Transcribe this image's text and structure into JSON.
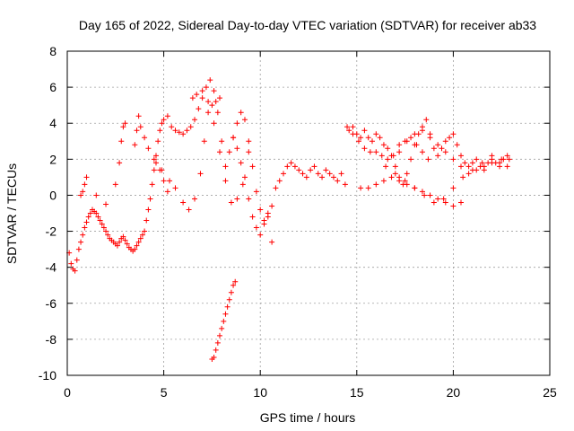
{
  "chart_data": {
    "type": "scatter",
    "title": "Day 165 of 2022, Sidereal Day-to-day VTEC variation (SDTVAR) for receiver ab33",
    "xlabel": "GPS time / hours",
    "ylabel": "SDTVAR / TECUs",
    "xlim": [
      0,
      25
    ],
    "ylim": [
      -10,
      8
    ],
    "xticks": [
      0,
      5,
      10,
      15,
      20,
      25
    ],
    "yticks": [
      -10,
      -8,
      -6,
      -4,
      -2,
      0,
      2,
      4,
      6,
      8
    ],
    "grid": true,
    "marker": "+",
    "color": "#ff0000",
    "series": [
      {
        "name": "SDTVAR",
        "x": [
          0.1,
          0.2,
          0.3,
          0.4,
          0.5,
          0.6,
          0.7,
          0.8,
          0.9,
          1.0,
          1.1,
          1.2,
          1.3,
          1.4,
          1.5,
          1.6,
          1.7,
          1.8,
          1.9,
          2.0,
          2.1,
          2.2,
          2.3,
          2.4,
          2.5,
          2.6,
          2.7,
          2.8,
          2.9,
          3.0,
          3.1,
          3.2,
          3.3,
          3.4,
          3.5,
          3.6,
          3.7,
          3.8,
          3.9,
          4.0,
          4.1,
          4.2,
          4.3,
          4.4,
          4.5,
          4.6,
          4.7,
          4.8,
          4.9,
          5.0,
          5.2,
          5.4,
          5.6,
          5.8,
          6.0,
          6.2,
          6.4,
          6.6,
          6.8,
          7.0,
          7.2,
          7.4,
          7.6,
          7.8,
          8.0,
          8.2,
          8.4,
          8.6,
          8.8,
          9.0,
          9.2,
          9.4,
          9.6,
          9.8,
          10.0,
          10.2,
          10.4,
          10.6,
          10.8,
          11.0,
          11.2,
          11.4,
          11.6,
          11.8,
          12.0,
          12.2,
          12.4,
          12.6,
          12.8,
          13.0,
          13.2,
          13.4,
          13.6,
          13.8,
          14.0,
          14.2,
          14.4,
          14.6,
          14.8,
          15.0,
          15.2,
          15.4,
          15.6,
          15.8,
          16.0,
          16.2,
          16.4,
          16.6,
          16.8,
          17.0,
          17.2,
          17.4,
          17.6,
          17.8,
          18.0,
          18.2,
          18.4,
          18.6,
          18.8,
          19.0,
          19.2,
          19.4,
          19.6,
          19.8,
          20.0,
          20.2,
          20.4,
          20.6,
          20.8,
          21.0,
          21.2,
          21.4,
          21.6,
          21.8,
          22.0,
          22.2,
          22.4,
          22.6,
          22.8,
          0.7,
          0.8,
          0.9,
          1.0,
          1.5,
          2.0,
          2.5,
          2.7,
          2.8,
          2.9,
          3.0,
          3.5,
          3.6,
          3.7,
          3.8,
          4.0,
          4.2,
          4.5,
          4.8,
          5.0,
          5.2,
          4.6,
          4.9,
          5.3,
          5.6,
          6.0,
          6.3,
          6.6,
          6.9,
          7.1,
          7.3,
          7.5,
          7.7,
          7.9,
          6.5,
          6.7,
          7.0,
          7.3,
          7.6,
          7.9,
          8.2,
          8.5,
          8.8,
          9.1,
          9.4,
          8.6,
          8.8,
          9.0,
          9.2,
          9.4,
          9.6,
          9.8,
          10.0,
          10.2,
          10.4,
          10.6,
          7.5,
          7.6,
          7.7,
          7.8,
          7.9,
          8.0,
          8.1,
          8.2,
          8.3,
          8.4,
          8.5,
          8.6,
          8.7,
          14.5,
          14.8,
          15.1,
          15.4,
          15.7,
          16.0,
          16.3,
          16.6,
          16.9,
          17.2,
          17.5,
          17.8,
          18.1,
          18.4,
          18.7,
          15.2,
          15.6,
          16.0,
          16.4,
          16.8,
          17.2,
          17.6,
          18.0,
          18.4,
          18.8,
          19.2,
          19.6,
          20.0,
          20.4,
          16.5,
          17.0,
          17.5,
          18.0,
          18.5,
          19.0,
          19.5,
          20.0,
          20.5,
          21.0,
          21.5,
          22.0,
          22.5,
          22.9,
          17.2,
          17.6,
          18.0,
          18.4,
          18.8,
          19.2,
          19.6,
          20.0,
          20.4,
          20.8,
          21.2,
          21.6,
          22.0,
          22.4,
          22.8
        ],
        "y": [
          -3.2,
          -3.8,
          -4.1,
          -4.2,
          -3.6,
          -3.0,
          -2.6,
          -2.2,
          -1.8,
          -1.5,
          -1.2,
          -1.0,
          -0.8,
          -0.9,
          -1.0,
          -1.2,
          -1.4,
          -1.6,
          -1.8,
          -2.0,
          -2.2,
          -2.4,
          -2.5,
          -2.6,
          -2.7,
          -2.8,
          -2.6,
          -2.4,
          -2.3,
          -2.5,
          -2.7,
          -2.9,
          -3.0,
          -3.1,
          -3.0,
          -2.8,
          -2.6,
          -2.4,
          -2.2,
          -2.0,
          -1.4,
          -0.8,
          -0.2,
          0.6,
          1.4,
          2.2,
          3.0,
          3.6,
          4.0,
          4.2,
          4.4,
          3.8,
          3.6,
          3.5,
          3.4,
          3.6,
          3.8,
          4.2,
          4.8,
          5.4,
          6.0,
          6.4,
          5.8,
          4.6,
          3.0,
          1.6,
          2.4,
          3.2,
          4.0,
          4.6,
          4.2,
          3.0,
          1.6,
          0.2,
          -0.8,
          -1.4,
          -1.2,
          -0.6,
          0.4,
          0.8,
          1.2,
          1.6,
          1.8,
          1.6,
          1.4,
          1.2,
          1.0,
          1.4,
          1.6,
          1.2,
          1.0,
          1.4,
          1.2,
          1.0,
          0.8,
          1.2,
          0.6,
          3.6,
          3.8,
          3.4,
          3.2,
          3.6,
          3.2,
          3.0,
          3.4,
          3.2,
          2.8,
          2.6,
          2.2,
          1.6,
          1.0,
          0.6,
          1.2,
          2.0,
          2.8,
          3.4,
          3.8,
          4.2,
          3.4,
          2.6,
          2.2,
          2.6,
          3.0,
          3.2,
          3.4,
          2.8,
          2.2,
          1.8,
          1.6,
          1.8,
          2.0,
          1.6,
          1.4,
          1.8,
          2.2,
          1.8,
          1.6,
          2.0,
          2.2,
          0.0,
          0.2,
          0.6,
          1.0,
          0.0,
          -0.5,
          0.6,
          1.8,
          3.0,
          3.8,
          4.0,
          2.8,
          3.6,
          4.4,
          3.8,
          3.2,
          2.6,
          2.0,
          1.4,
          0.8,
          0.2,
          1.8,
          1.4,
          0.8,
          0.4,
          -0.4,
          -0.8,
          -0.2,
          1.2,
          3.0,
          4.6,
          5.0,
          5.2,
          5.4,
          5.4,
          5.6,
          5.8,
          5.2,
          4.0,
          2.4,
          0.8,
          -0.4,
          -0.2,
          0.6,
          2.4,
          3.2,
          2.6,
          1.8,
          1.0,
          -0.2,
          -1.2,
          -1.8,
          -2.2,
          -1.6,
          -1.0,
          -2.6,
          -9.1,
          -9.0,
          -8.6,
          -8.2,
          -7.8,
          -7.4,
          -7.0,
          -6.6,
          -6.2,
          -5.8,
          -5.4,
          -5.0,
          -4.8,
          3.8,
          3.4,
          3.0,
          2.6,
          2.4,
          2.4,
          2.2,
          2.0,
          2.2,
          2.8,
          3.0,
          3.2,
          2.8,
          2.4,
          2.0,
          0.4,
          0.4,
          0.6,
          0.8,
          1.0,
          0.8,
          0.6,
          0.4,
          0.2,
          0.0,
          -0.2,
          -0.4,
          -0.6,
          -0.4,
          1.6,
          1.2,
          0.8,
          0.4,
          0.0,
          -0.4,
          -0.2,
          0.4,
          1.0,
          1.4,
          1.8,
          2.0,
          2.0,
          2.0,
          2.4,
          3.0,
          3.4,
          3.6,
          3.2,
          2.8,
          2.4,
          2.0,
          1.6,
          1.2,
          1.4,
          1.6,
          1.8,
          1.8,
          1.6
        ]
      }
    ]
  }
}
